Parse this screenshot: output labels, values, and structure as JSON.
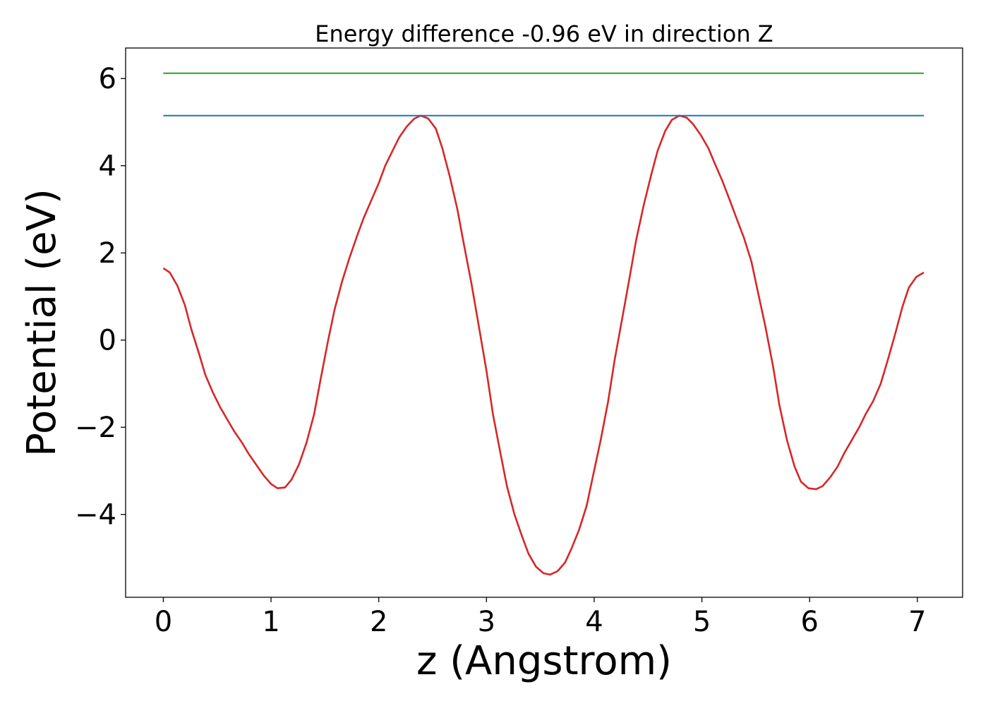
{
  "chart_data": {
    "type": "line",
    "title": "Energy difference -0.96 eV in direction Z",
    "xlabel": "z (Angstrom)",
    "ylabel": "Potential (eV)",
    "xlim": [
      -0.35,
      7.42
    ],
    "ylim": [
      -5.9,
      6.7
    ],
    "xticks": [
      0,
      1,
      2,
      3,
      4,
      5,
      6,
      7
    ],
    "xtick_labels": [
      "0",
      "1",
      "2",
      "3",
      "4",
      "5",
      "6",
      "7"
    ],
    "yticks": [
      -4,
      -2,
      0,
      2,
      4,
      6
    ],
    "ytick_labels": [
      "−4",
      "−2",
      "0",
      "2",
      "4",
      "6"
    ],
    "grid": false,
    "series": [
      {
        "color": "#d62728",
        "x": [
          0.0,
          0.06,
          0.13,
          0.2,
          0.26,
          0.33,
          0.39,
          0.46,
          0.53,
          0.6,
          0.66,
          0.73,
          0.79,
          0.86,
          0.93,
          1.0,
          1.06,
          1.13,
          1.19,
          1.26,
          1.33,
          1.4,
          1.46,
          1.53,
          1.59,
          1.66,
          1.73,
          1.8,
          1.86,
          1.93,
          2.0,
          2.06,
          2.13,
          2.19,
          2.26,
          2.33,
          2.39,
          2.46,
          2.53,
          2.59,
          2.66,
          2.73,
          2.79,
          2.86,
          2.93,
          3.0,
          3.06,
          3.13,
          3.19,
          3.26,
          3.33,
          3.39,
          3.46,
          3.53,
          3.59,
          3.66,
          3.73,
          3.79,
          3.86,
          3.93,
          3.99,
          4.06,
          4.13,
          4.19,
          4.26,
          4.33,
          4.39,
          4.46,
          4.53,
          4.59,
          4.66,
          4.72,
          4.79,
          4.86,
          4.92,
          4.99,
          5.06,
          5.12,
          5.19,
          5.26,
          5.32,
          5.39,
          5.46,
          5.52,
          5.59,
          5.66,
          5.72,
          5.79,
          5.86,
          5.92,
          5.99,
          6.06,
          6.12,
          6.19,
          6.26,
          6.32,
          6.39,
          6.46,
          6.52,
          6.59,
          6.66,
          6.72,
          6.79,
          6.86,
          6.92,
          6.99,
          7.06
        ],
        "y": [
          1.65,
          1.55,
          1.25,
          0.8,
          0.25,
          -0.3,
          -0.8,
          -1.2,
          -1.55,
          -1.85,
          -2.1,
          -2.35,
          -2.6,
          -2.85,
          -3.1,
          -3.3,
          -3.4,
          -3.38,
          -3.2,
          -2.85,
          -2.35,
          -1.7,
          -0.9,
          0.0,
          0.7,
          1.35,
          1.9,
          2.4,
          2.8,
          3.2,
          3.6,
          4.0,
          4.35,
          4.65,
          4.9,
          5.08,
          5.15,
          5.08,
          4.85,
          4.4,
          3.75,
          3.0,
          2.2,
          1.3,
          0.3,
          -0.7,
          -1.7,
          -2.6,
          -3.35,
          -4.0,
          -4.5,
          -4.9,
          -5.2,
          -5.35,
          -5.38,
          -5.3,
          -5.1,
          -4.78,
          -4.35,
          -3.8,
          -3.1,
          -2.3,
          -1.4,
          -0.45,
          0.5,
          1.45,
          2.3,
          3.1,
          3.8,
          4.35,
          4.8,
          5.05,
          5.15,
          5.1,
          4.95,
          4.7,
          4.4,
          4.05,
          3.65,
          3.2,
          2.8,
          2.35,
          1.8,
          1.1,
          0.3,
          -0.6,
          -1.5,
          -2.3,
          -2.9,
          -3.25,
          -3.4,
          -3.42,
          -3.35,
          -3.15,
          -2.9,
          -2.6,
          -2.3,
          -2.0,
          -1.7,
          -1.4,
          -1.0,
          -0.5,
          0.1,
          0.75,
          1.2,
          1.45,
          1.55
        ]
      },
      {
        "color": "#1f77b4",
        "x": [
          0.0,
          7.06
        ],
        "y": [
          5.15,
          5.15
        ]
      },
      {
        "color": "#2ca02c",
        "x": [
          0.0,
          7.06
        ],
        "y": [
          6.12,
          6.12
        ]
      }
    ]
  }
}
